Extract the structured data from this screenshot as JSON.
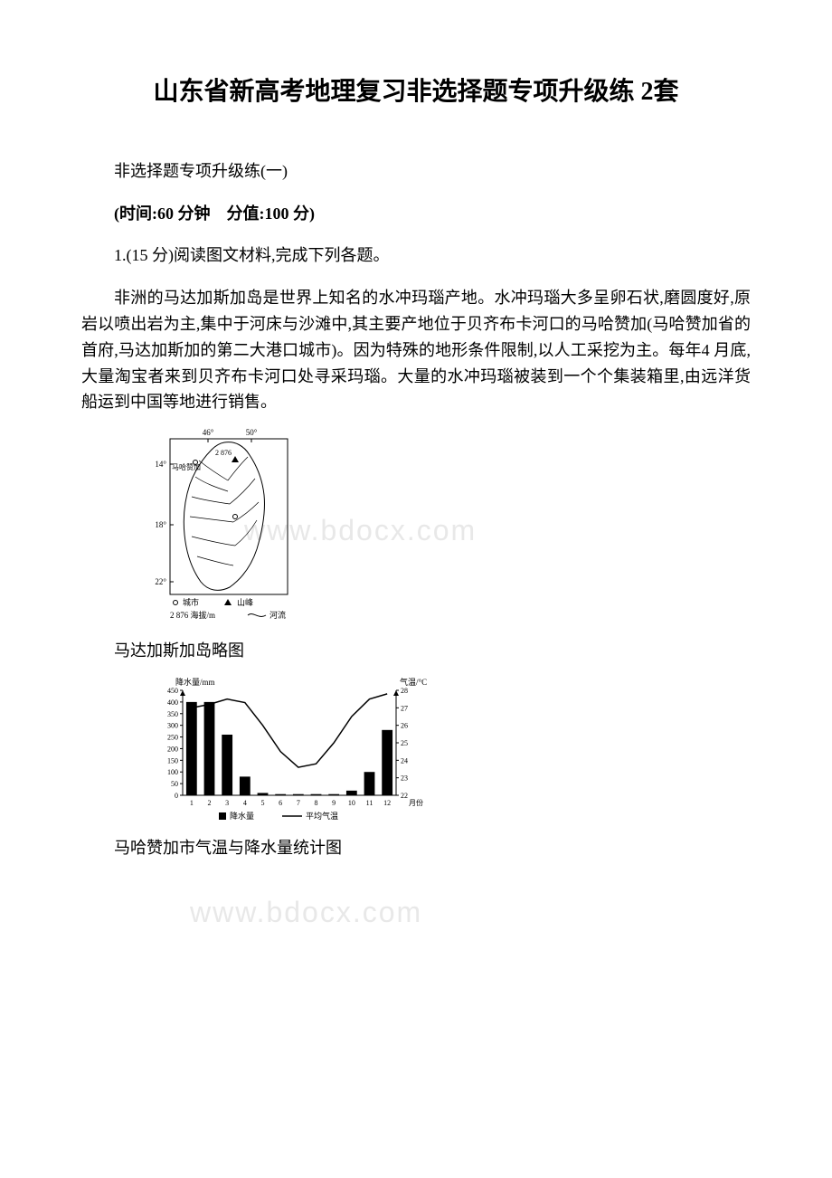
{
  "title": "山东省新高考地理复习非选择题专项升级练 2套",
  "subtitle": "非选择题专项升级练(一)",
  "exam_info": "(时间:60 分钟　分值:100 分)",
  "question_intro": "1.(15 分)阅读图文材料,完成下列各题。",
  "paragraph": "非洲的马达加斯加岛是世界上知名的水冲玛瑙产地。水冲玛瑙大多呈卵石状,磨圆度好,原岩以喷出岩为主,集中于河床与沙滩中,其主要产地位于贝齐布卡河口的马哈赞加(马哈赞加省的首府,马达加斯加的第二大港口城市)。因为特殊的地形条件限制,以人工采挖为主。每年4 月底,大量淘宝者来到贝齐布卡河口处寻采玛瑙。大量的水冲玛瑙被装到一个个集装箱里,由远洋货船运到中国等地进行销售。",
  "watermark": "www.bdocx.com",
  "map": {
    "caption": "马达加斯加岛略图",
    "longitudes": [
      "46°",
      "50°"
    ],
    "latitudes": [
      "14°",
      "18°",
      "22°"
    ],
    "city_label": "马哈赞加",
    "peak_value": "2 876",
    "legend_city": "城市",
    "legend_peak": "山峰",
    "legend_elev": "2 876 海拔/m",
    "legend_river": "河流",
    "line_color": "#000000",
    "bg_color": "#ffffff"
  },
  "chart": {
    "caption": "马哈赞加市气温与降水量统计图",
    "type": "combo-bar-line",
    "y1_label": "降水量/mm",
    "y2_label": "气温/°C",
    "x_label": "月份",
    "months": [
      "1",
      "2",
      "3",
      "4",
      "5",
      "6",
      "7",
      "8",
      "9",
      "10",
      "11",
      "12"
    ],
    "precipitation_values": [
      400,
      400,
      260,
      80,
      10,
      5,
      5,
      5,
      5,
      20,
      100,
      280
    ],
    "temperature_values": [
      27.0,
      27.2,
      27.5,
      27.3,
      26.0,
      24.5,
      23.6,
      23.8,
      25.0,
      26.5,
      27.5,
      27.8
    ],
    "y1_ticks": [
      0,
      50,
      100,
      150,
      200,
      250,
      300,
      350,
      400,
      450
    ],
    "y2_ticks": [
      22,
      23,
      24,
      25,
      26,
      27,
      28
    ],
    "y1_lim": [
      0,
      450
    ],
    "y2_lim": [
      22,
      28
    ],
    "bar_color": "#000000",
    "line_color": "#000000",
    "axis_color": "#000000",
    "bg_color": "#ffffff",
    "legend_precip": "降水量",
    "legend_temp": "平均气温",
    "bar_width": 0.6,
    "label_fontsize": 9,
    "tick_fontsize": 8
  }
}
